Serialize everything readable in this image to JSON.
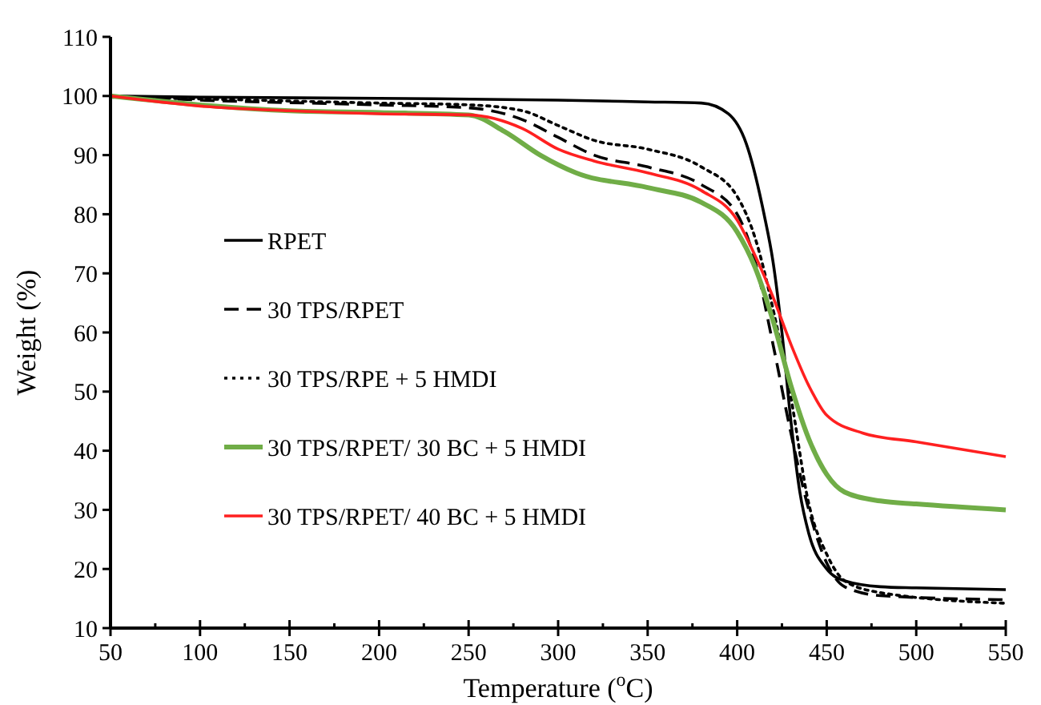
{
  "chart_data": {
    "type": "line",
    "xlabel": "Temperature ($^{o}$C)",
    "ylabel": "Weight (%)",
    "xlim": [
      50,
      550
    ],
    "ylim": [
      10,
      110
    ],
    "xticks": [
      50,
      {
        "value": 75,
        "label": null
      },
      100,
      {
        "value": 125,
        "label": null
      },
      150,
      {
        "value": 175,
        "label": null
      },
      200,
      {
        "value": 225,
        "label": null
      },
      250,
      {
        "value": 275,
        "label": null
      },
      300,
      {
        "value": 325,
        "label": null
      },
      350,
      {
        "value": 375,
        "label": null
      },
      400,
      {
        "value": 425,
        "label": null
      },
      450,
      {
        "value": 475,
        "label": null
      },
      500,
      {
        "value": 525,
        "label": null
      },
      550
    ],
    "yticks": [
      10,
      20,
      30,
      40,
      50,
      60,
      70,
      80,
      90,
      100,
      110
    ],
    "grid": false,
    "legend": "left",
    "marker": "none",
    "series": [
      {
        "name": "RPET",
        "color": "#000000",
        "line_style": "solid",
        "x": [
          50,
          100,
          200,
          300,
          350,
          380,
          395,
          405,
          415,
          420,
          425,
          430,
          435,
          440,
          450,
          460,
          480,
          500,
          550
        ],
        "values": [
          100,
          99.8,
          99.6,
          99.3,
          99,
          98.8,
          97,
          92,
          80,
          72,
          60,
          45,
          33,
          26,
          20,
          18,
          17,
          16.8,
          16.5
        ]
      },
      {
        "name": "30 TPS/RPET",
        "color": "#000000",
        "line_style": "dashed",
        "x": [
          50,
          100,
          200,
          250,
          280,
          300,
          320,
          350,
          380,
          400,
          410,
          420,
          430,
          440,
          450,
          460,
          480,
          550
        ],
        "values": [
          100,
          99.3,
          98.5,
          98,
          96,
          93,
          90,
          88,
          85,
          80,
          72,
          58,
          43,
          30,
          21,
          17,
          15.5,
          14.8
        ]
      },
      {
        "name": "30 TPS/RPE + 5 HMDI",
        "color": "#000000",
        "line_style": "dotted",
        "x": [
          50,
          100,
          200,
          250,
          280,
          300,
          320,
          350,
          380,
          400,
          410,
          420,
          430,
          440,
          450,
          460,
          480,
          550
        ],
        "values": [
          99.8,
          99.5,
          98.8,
          98.5,
          97.5,
          95,
          92.5,
          91,
          88,
          83,
          76,
          64,
          49,
          31,
          22.5,
          18,
          16,
          14.2
        ]
      },
      {
        "name": "30 TPS/RPET/ 30 BC + 5 HMDI",
        "color": "#70ad47",
        "line_style": "solid",
        "x": [
          50,
          100,
          150,
          200,
          250,
          270,
          290,
          310,
          350,
          380,
          400,
          410,
          420,
          430,
          440,
          450,
          460,
          480,
          500,
          550
        ],
        "values": [
          100,
          98.5,
          97.5,
          97.2,
          96.8,
          94,
          90,
          87,
          84.5,
          82,
          77,
          71,
          62,
          51,
          42,
          36,
          33,
          31.5,
          31,
          30
        ]
      },
      {
        "name": "30 TPS/RPET/ 40  BC + 5 HMDI",
        "color": "#ff2020",
        "line_style": "solid",
        "x": [
          50,
          100,
          150,
          200,
          250,
          280,
          300,
          320,
          350,
          380,
          400,
          410,
          420,
          430,
          440,
          450,
          470,
          500,
          550
        ],
        "values": [
          100,
          98.3,
          97.5,
          97,
          96.8,
          94.5,
          91,
          89,
          87,
          84,
          79,
          73,
          66,
          58,
          51,
          46,
          43,
          41.5,
          39
        ]
      }
    ]
  }
}
